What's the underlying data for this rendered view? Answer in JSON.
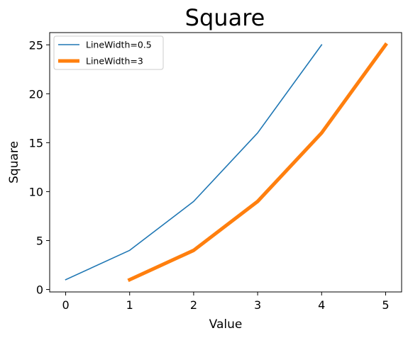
{
  "chart_data": {
    "type": "line",
    "title": "Square",
    "xlabel": "Value",
    "ylabel": "Square",
    "xlim": [
      -0.25,
      5.25
    ],
    "ylim": [
      -0.25,
      26.25
    ],
    "xticks": [
      0,
      1,
      2,
      3,
      4,
      5
    ],
    "yticks": [
      0,
      5,
      10,
      15,
      20,
      25
    ],
    "grid": false,
    "legend_position": "top-left",
    "series": [
      {
        "name": "LineWidth=0.5",
        "x": [
          0,
          1,
          2,
          3,
          4
        ],
        "y": [
          1,
          4,
          9,
          16,
          25
        ],
        "color": "#1f77b4"
      },
      {
        "name": "LineWidth=3",
        "x": [
          1,
          2,
          3,
          4,
          5
        ],
        "y": [
          1,
          4,
          9,
          16,
          25
        ],
        "color": "#ff7f0e"
      }
    ]
  }
}
